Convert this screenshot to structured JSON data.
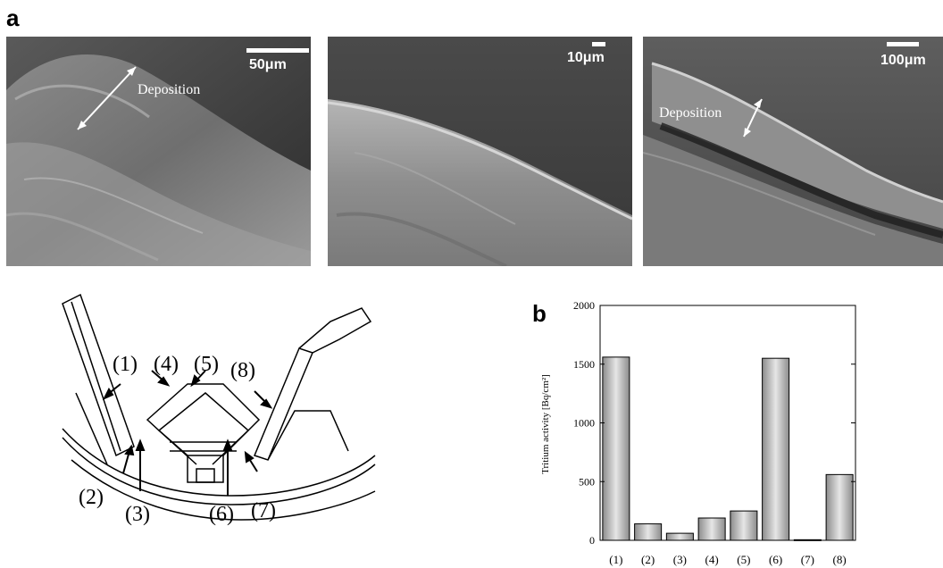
{
  "panel_labels": {
    "a": "a",
    "b": "b"
  },
  "micrographs": [
    {
      "scale_label": "50μm",
      "annotation": "Deposition"
    },
    {
      "scale_label": "10μm"
    },
    {
      "scale_label": "100μm",
      "annotation": "Deposition"
    }
  ],
  "diagram_labels": [
    "(1)",
    "(2)",
    "(3)",
    "(4)",
    "(5)",
    "(6)",
    "(7)",
    "(8)"
  ],
  "chart_data": {
    "type": "bar",
    "categories": [
      "(1)",
      "(2)",
      "(3)",
      "(4)",
      "(5)",
      "(6)",
      "(7)",
      "(8)"
    ],
    "values": [
      1560,
      140,
      60,
      190,
      250,
      1550,
      5,
      560
    ],
    "ylabel": "Tritium activity [Bq/cm²]",
    "ylim": [
      0,
      2000
    ],
    "yticks": [
      0,
      500,
      1000,
      1500,
      2000
    ],
    "grid": false,
    "colors": {
      "bar_dark": "#8c8c8c",
      "bar_light": "#e6e6e6",
      "axis": "#000000"
    }
  }
}
